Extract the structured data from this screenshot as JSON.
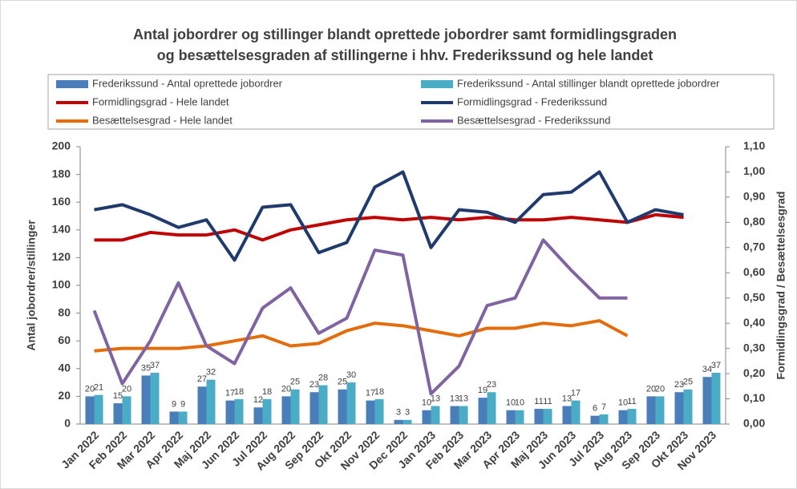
{
  "chart_data": {
    "type": "bar",
    "title": [
      "Antal jobordrer og stillinger blandt oprettede jobordrer samt formidlingsgraden",
      "og besættelsesgraden af stillingerne i hhv. Frederikssund og hele landet"
    ],
    "y_label": "Antal jobordrer/stillinger",
    "y2_label": "Formidlingsgrad / Besættelsesgrad",
    "categories": [
      "Jan 2022",
      "Feb 2022",
      "Mar 2022",
      "Apr 2022",
      "Maj 2022",
      "Jun 2022",
      "Jul 2022",
      "Aug 2022",
      "Sep 2022",
      "Okt 2022",
      "Nov 2022",
      "Dec 2022",
      "Jan 2023",
      "Feb 2023",
      "Mar 2023",
      "Apr 2023",
      "Maj 2023",
      "Jun 2023",
      "Jul 2023",
      "Aug 2023",
      "Sep 2023",
      "Okt 2023",
      "Nov 2023"
    ],
    "series": [
      {
        "name": "Frederikssund - Antal oprettede jobordrer",
        "type": "bar",
        "color": "#4a7ebb",
        "values": [
          20,
          15,
          35,
          9,
          27,
          17,
          12,
          20,
          23,
          25,
          17,
          3,
          10,
          13,
          19,
          10,
          11,
          13,
          6,
          10,
          20,
          23,
          34
        ]
      },
      {
        "name": "Frederikssund - Antal stillinger blandt oprettede jobordrer",
        "type": "bar",
        "color": "#4bacc6",
        "values": [
          21,
          20,
          37,
          9,
          32,
          18,
          18,
          25,
          28,
          30,
          18,
          3,
          13,
          13,
          23,
          10,
          11,
          17,
          7,
          11,
          20,
          25,
          37
        ]
      },
      {
        "name": "Formidlingsgrad - Hele landet",
        "type": "line",
        "axis": "y2",
        "color": "#c00000",
        "values": [
          0.73,
          0.73,
          0.76,
          0.75,
          0.75,
          0.77,
          0.73,
          0.77,
          0.79,
          0.81,
          0.82,
          0.81,
          0.82,
          0.81,
          0.82,
          0.81,
          0.81,
          0.82,
          0.81,
          0.8,
          0.83,
          0.82,
          null
        ]
      },
      {
        "name": "Formidlingsgrad - Frederikssund",
        "type": "line",
        "axis": "y2",
        "color": "#1f3b6e",
        "values": [
          0.85,
          0.87,
          0.83,
          0.78,
          0.81,
          0.65,
          0.86,
          0.87,
          0.68,
          0.72,
          0.94,
          1.0,
          0.7,
          0.85,
          0.84,
          0.8,
          0.91,
          0.92,
          1.0,
          0.8,
          0.85,
          0.83,
          null
        ]
      },
      {
        "name": "Besættelsesgrad - Hele landet",
        "type": "line",
        "axis": "y2",
        "color": "#e46c0a",
        "values": [
          0.29,
          0.3,
          0.3,
          0.3,
          0.31,
          0.33,
          0.35,
          0.31,
          0.32,
          0.37,
          0.4,
          0.39,
          0.37,
          0.35,
          0.38,
          0.38,
          0.4,
          0.39,
          0.41,
          0.35,
          null,
          null,
          null
        ]
      },
      {
        "name": "Besættelsesgrad - Frederikssund",
        "type": "line",
        "axis": "y2",
        "color": "#8064a2",
        "values": [
          0.45,
          0.16,
          0.33,
          0.56,
          0.31,
          0.24,
          0.46,
          0.54,
          0.36,
          0.42,
          0.69,
          0.67,
          0.12,
          0.23,
          0.47,
          0.5,
          0.73,
          0.61,
          0.5,
          0.5,
          null,
          null,
          null
        ]
      }
    ],
    "ylim": [
      0,
      200
    ],
    "yticks": [
      0,
      20,
      40,
      60,
      80,
      100,
      120,
      140,
      160,
      180,
      200
    ],
    "y2lim": [
      0,
      1.1
    ],
    "y2ticks": [
      {
        "value": 0,
        "label": "0,00"
      },
      {
        "value": 0.1,
        "label": "0,10"
      },
      {
        "value": 0.2,
        "label": "0,20"
      },
      {
        "value": 0.3,
        "label": "0,30"
      },
      {
        "value": 0.4,
        "label": "0,40"
      },
      {
        "value": 0.5,
        "label": "0,50"
      },
      {
        "value": 0.6,
        "label": "0,60"
      },
      {
        "value": 0.7,
        "label": "0,70"
      },
      {
        "value": 0.8,
        "label": "0,80"
      },
      {
        "value": 0.9,
        "label": "0,90"
      },
      {
        "value": 1.0,
        "label": "1,00"
      },
      {
        "value": 1.1,
        "label": "1,10"
      }
    ],
    "legend": "top"
  }
}
